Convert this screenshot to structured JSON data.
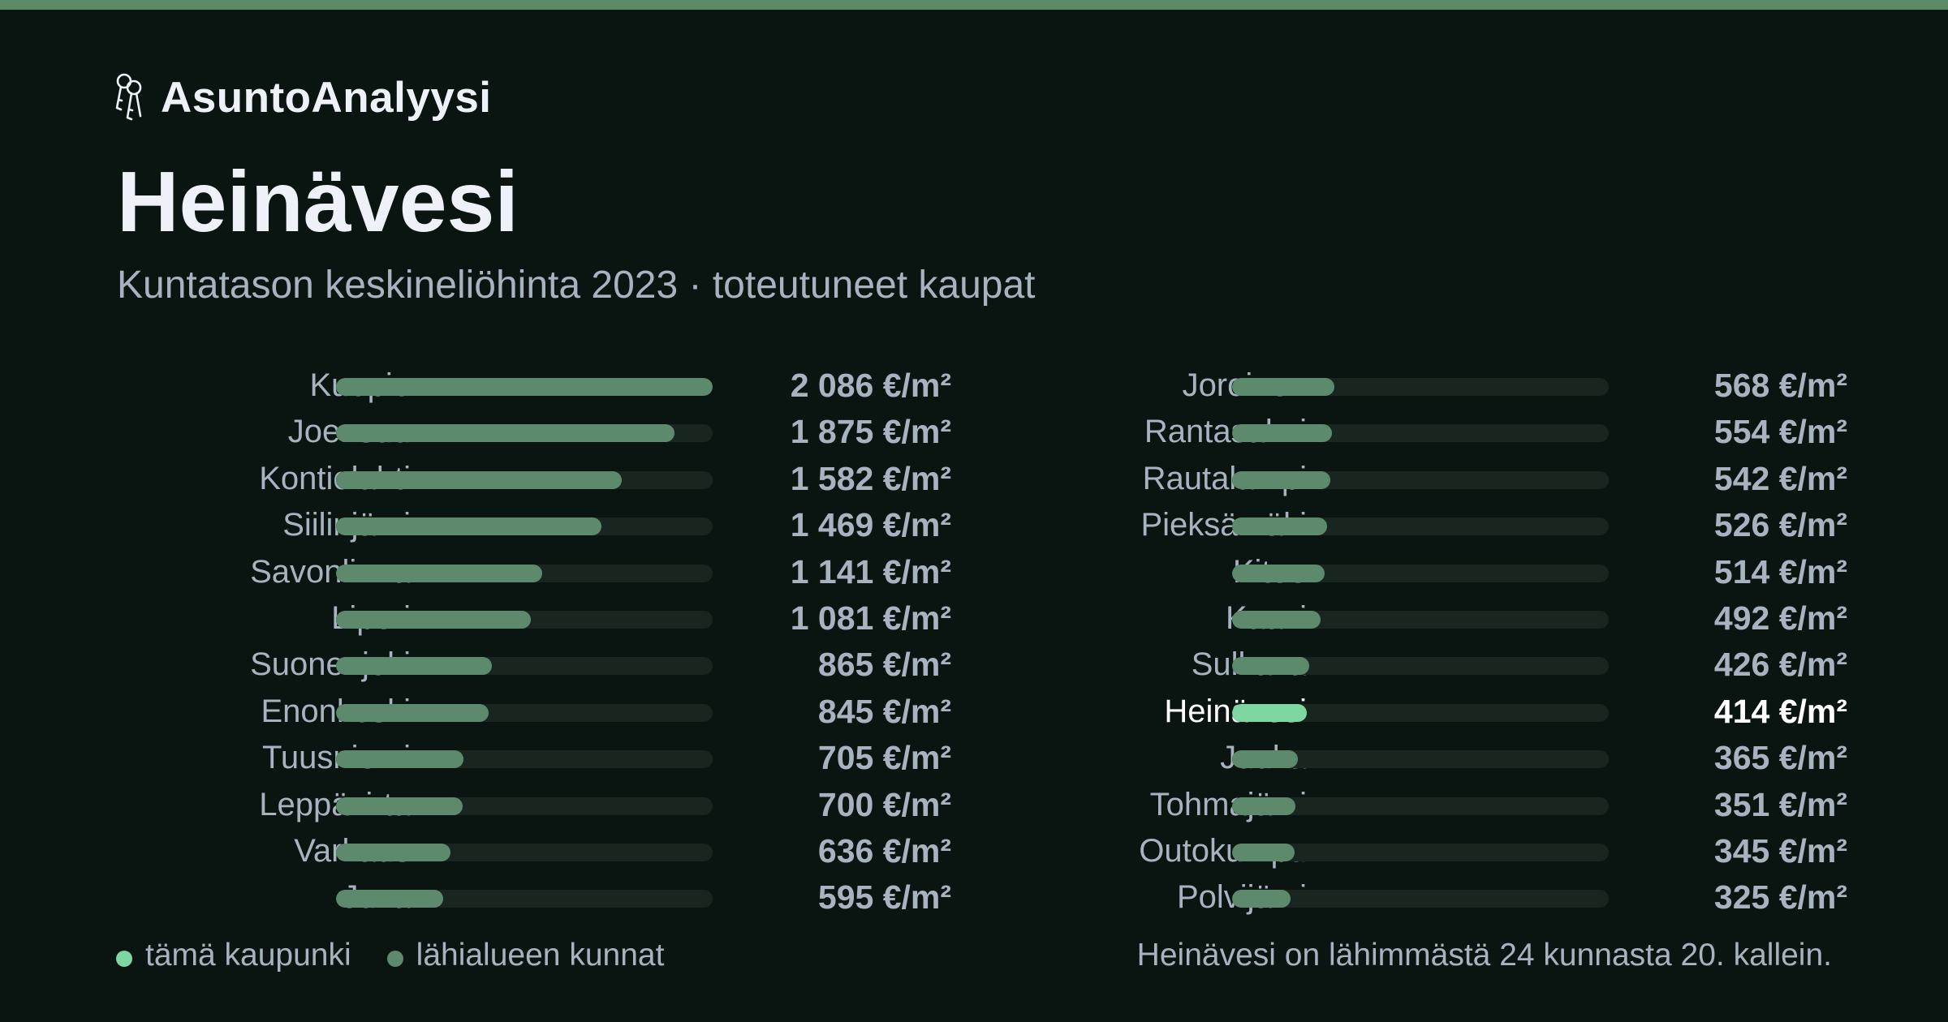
{
  "brand": {
    "name": "AsuntoAnalyysi",
    "icon": "keys-icon"
  },
  "title": "Heinävesi",
  "subtitle": "Kuntatason keskineliöhinta 2023 · toteutuneet kaupat",
  "colors": {
    "accent": "#5d8a66",
    "bar": "#5d8a6c",
    "highlight": "#7ed6a0",
    "track": "#19251f",
    "background": "#0a1512"
  },
  "chart_data": {
    "type": "bar",
    "orientation": "horizontal",
    "unit": "€/m²",
    "xlim": [
      0,
      2086
    ],
    "highlight": "Heinävesi",
    "categories": [
      "Kuopio",
      "Joensuu",
      "Kontiolahti",
      "Siilinjärvi",
      "Savonlinna",
      "Liperi",
      "Suonenjoki",
      "Enonkoski",
      "Tuusniemi",
      "Leppävirta",
      "Varkaus",
      "Juva",
      "Joroinen",
      "Rantasalmi",
      "Rautalampi",
      "Pieksämäki",
      "Kitee",
      "Kaavi",
      "Sulkava",
      "Heinävesi",
      "Juuka",
      "Tohmajärvi",
      "Outokumpu",
      "Polvijärvi"
    ],
    "values": [
      2086,
      1875,
      1582,
      1469,
      1141,
      1081,
      865,
      845,
      705,
      700,
      636,
      595,
      568,
      554,
      542,
      526,
      514,
      492,
      426,
      414,
      365,
      351,
      345,
      325
    ],
    "labels": [
      "2 086 €/m²",
      "1 875 €/m²",
      "1 582 €/m²",
      "1 469 €/m²",
      "1 141 €/m²",
      "1 081 €/m²",
      "865 €/m²",
      "845 €/m²",
      "705 €/m²",
      "700 €/m²",
      "636 €/m²",
      "595 €/m²",
      "568 €/m²",
      "554 €/m²",
      "542 €/m²",
      "526 €/m²",
      "514 €/m²",
      "492 €/m²",
      "426 €/m²",
      "414 €/m²",
      "365 €/m²",
      "351 €/m²",
      "345 €/m²",
      "325 €/m²"
    ]
  },
  "legend": {
    "this_city": "tämä kaupunki",
    "nearby": "lähialueen kunnat"
  },
  "footnote": "Heinävesi on lähimmästä 24 kunnasta 20. kallein."
}
